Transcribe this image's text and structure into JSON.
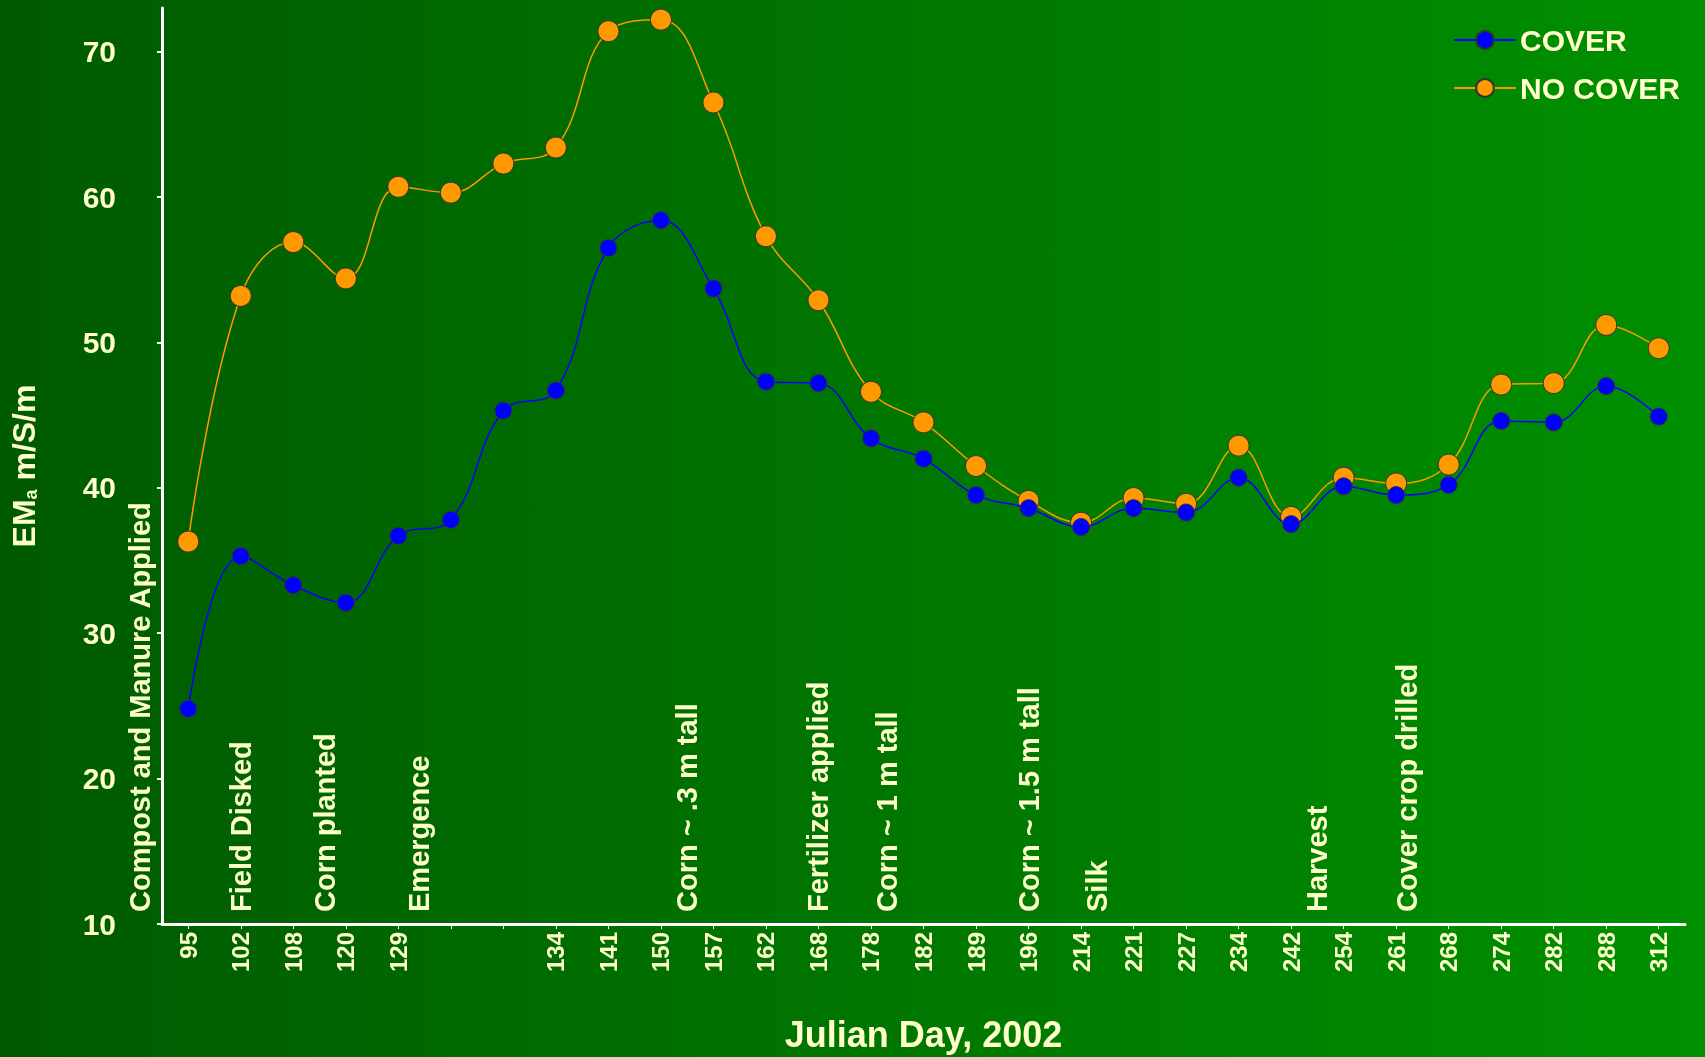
{
  "chart_data": {
    "type": "line",
    "xlabel": "Julian Day, 2002",
    "ylabel": "EM$_{a}$ m/S/m",
    "categories": [
      "95",
      "102",
      "108",
      "120",
      "129",
      null,
      null,
      "134",
      "141",
      "150",
      "157",
      "162",
      "168",
      "178",
      "182",
      "189",
      "196",
      "214",
      "221",
      "227",
      "234",
      "242",
      "254",
      "261",
      "268",
      "274",
      "282",
      "288",
      "312"
    ],
    "series": [
      {
        "name": "COVER",
        "color": "#0000ff",
        "values": [
          24.8,
          35.3,
          33.3,
          32.1,
          36.7,
          37.8,
          45.3,
          46.7,
          56.5,
          58.4,
          53.7,
          47.3,
          47.2,
          43.4,
          42.0,
          39.5,
          38.6,
          37.3,
          38.6,
          38.3,
          40.7,
          37.5,
          40.1,
          39.5,
          40.2,
          44.6,
          44.5,
          47.0,
          44.9
        ]
      },
      {
        "name": "NO COVER",
        "color": "#ff9900",
        "values": [
          36.3,
          53.2,
          56.9,
          54.4,
          60.7,
          60.3,
          62.3,
          63.4,
          71.4,
          72.2,
          66.5,
          57.3,
          52.9,
          46.6,
          44.5,
          41.5,
          39.1,
          37.6,
          39.3,
          38.9,
          42.9,
          38.0,
          40.7,
          40.3,
          41.6,
          47.1,
          47.2,
          51.2,
          49.6
        ]
      }
    ],
    "ylim": [
      10,
      73
    ],
    "yticks": [
      10,
      20,
      30,
      40,
      50,
      60,
      70
    ],
    "annotations": [
      "Compost and Manure Applied",
      "Field Disked",
      "Corn planted",
      "Emergence",
      "Corn ~ .3 m tall",
      "Fertilizer applied",
      "Corn ~ 1 m tall",
      "Corn ~ 1.5 m tall",
      "Silk",
      "Harvest",
      "Cover crop drilled"
    ],
    "legend": "top right",
    "marker": "circle",
    "line_style": "solid",
    "grid": false
  }
}
